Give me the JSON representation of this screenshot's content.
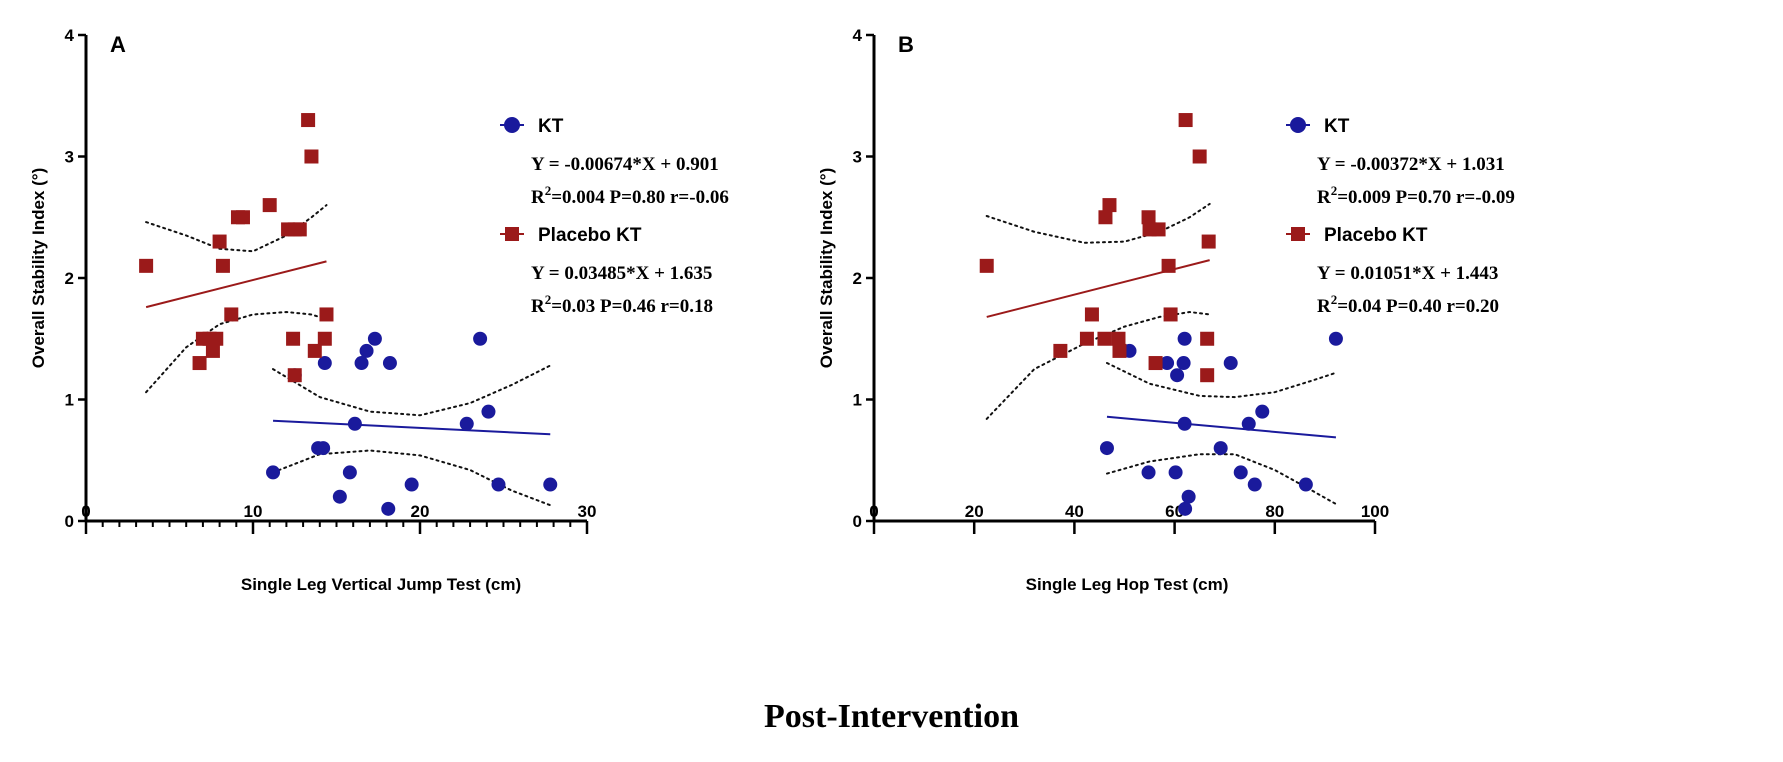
{
  "caption": "Post-Intervention",
  "colors": {
    "kt": "#1a1a9c",
    "placebo": "#9b1a1a",
    "axis": "#000000"
  },
  "chart_data": [
    {
      "type": "scatter",
      "panel_label": "A",
      "xlabel": "Single Leg Vertical Jump Test (cm)",
      "ylabel": "Overall Stability Index (°)",
      "xlim": [
        0,
        30
      ],
      "ylim": [
        0,
        4
      ],
      "xticks": [
        0,
        10,
        20,
        30
      ],
      "xtick_labels": [
        "0",
        "10",
        "20",
        "30"
      ],
      "yticks": [
        0,
        1,
        2,
        3,
        4
      ],
      "ytick_labels": [
        "0",
        "1",
        "2",
        "3",
        "4"
      ],
      "x_minor_step": 1,
      "legend": [
        {
          "name": "KT",
          "marker": "circle",
          "equation": "Y = -0.00674*X + 0.901",
          "stats": "=0.004 P=0.80 r=-0.06"
        },
        {
          "name": "Placebo KT",
          "marker": "square",
          "equation": "Y = 0.03485*X + 1.635",
          "stats": "=0.03 P=0.46 r=0.18"
        }
      ],
      "series": [
        {
          "name": "KT",
          "marker": "circle",
          "points": [
            [
              11.2,
              0.4
            ],
            [
              12.5,
              1.2
            ],
            [
              14.3,
              1.3
            ],
            [
              16.5,
              1.3
            ],
            [
              16.8,
              1.4
            ],
            [
              17.3,
              1.5
            ],
            [
              18.2,
              1.3
            ],
            [
              13.9,
              0.6
            ],
            [
              14.2,
              0.6
            ],
            [
              16.1,
              0.8
            ],
            [
              15.8,
              0.4
            ],
            [
              15.2,
              0.2
            ],
            [
              18.1,
              0.1
            ],
            [
              19.5,
              0.3
            ],
            [
              22.8,
              0.8
            ],
            [
              23.6,
              1.5
            ],
            [
              24.1,
              0.9
            ],
            [
              24.7,
              0.3
            ],
            [
              27.8,
              0.3
            ]
          ],
          "fit": {
            "x": [
              11.2,
              27.8
            ],
            "slope": -0.00674,
            "intercept": 0.901
          },
          "ci_upper": [
            [
              11.2,
              1.25
            ],
            [
              14,
              1.02
            ],
            [
              17,
              0.9
            ],
            [
              20,
              0.87
            ],
            [
              23,
              0.97
            ],
            [
              25.5,
              1.12
            ],
            [
              27.8,
              1.28
            ]
          ],
          "ci_lower": [
            [
              11.2,
              0.4
            ],
            [
              14,
              0.55
            ],
            [
              17,
              0.58
            ],
            [
              20,
              0.54
            ],
            [
              23,
              0.42
            ],
            [
              25.5,
              0.25
            ],
            [
              27.8,
              0.13
            ]
          ]
        },
        {
          "name": "Placebo KT",
          "marker": "square",
          "points": [
            [
              3.6,
              2.1
            ],
            [
              6.8,
              1.3
            ],
            [
              7.0,
              1.5
            ],
            [
              7.4,
              1.5
            ],
            [
              7.6,
              1.4
            ],
            [
              7.8,
              1.5
            ],
            [
              8.0,
              2.3
            ],
            [
              8.2,
              2.1
            ],
            [
              8.7,
              1.7
            ],
            [
              9.1,
              2.5
            ],
            [
              9.4,
              2.5
            ],
            [
              11.0,
              2.6
            ],
            [
              12.1,
              2.4
            ],
            [
              12.5,
              2.4
            ],
            [
              12.8,
              2.4
            ],
            [
              12.4,
              1.5
            ],
            [
              12.5,
              1.2
            ],
            [
              13.3,
              3.3
            ],
            [
              13.5,
              3.0
            ],
            [
              13.7,
              1.4
            ],
            [
              14.3,
              1.5
            ],
            [
              14.4,
              1.7
            ]
          ],
          "fit": {
            "x": [
              3.6,
              14.4
            ],
            "slope": 0.03485,
            "intercept": 1.635
          },
          "ci_upper": [
            [
              3.6,
              2.46
            ],
            [
              6,
              2.35
            ],
            [
              8,
              2.24
            ],
            [
              10,
              2.22
            ],
            [
              12,
              2.35
            ],
            [
              13.5,
              2.5
            ],
            [
              14.4,
              2.6
            ]
          ],
          "ci_lower": [
            [
              3.6,
              1.06
            ],
            [
              6,
              1.43
            ],
            [
              8,
              1.62
            ],
            [
              10,
              1.7
            ],
            [
              12,
              1.72
            ],
            [
              13.5,
              1.7
            ],
            [
              14.4,
              1.66
            ]
          ]
        }
      ]
    },
    {
      "type": "scatter",
      "panel_label": "B",
      "xlabel": "Single Leg Hop Test (cm)",
      "ylabel": "Overall Stability Index (°)",
      "xlim": [
        0,
        100
      ],
      "ylim": [
        0,
        4
      ],
      "xticks": [
        0,
        20,
        40,
        60,
        80,
        100
      ],
      "xtick_labels": [
        "0",
        "20",
        "40",
        "60",
        "80",
        "100"
      ],
      "yticks": [
        0,
        1,
        2,
        3,
        4
      ],
      "ytick_labels": [
        "0",
        "1",
        "2",
        "3",
        "4"
      ],
      "x_minor_step": 0,
      "legend": [
        {
          "name": "KT",
          "marker": "circle",
          "equation": "Y = -0.00372*X + 1.031",
          "stats": "=0.009 P=0.70 r=-0.09"
        },
        {
          "name": "Placebo KT",
          "marker": "square",
          "equation": "Y = 0.01051*X + 1.443",
          "stats": "=0.04 P=0.40 r=0.20"
        }
      ],
      "series": [
        {
          "name": "KT",
          "marker": "circle",
          "points": [
            [
              46.5,
              0.6
            ],
            [
              51,
              1.4
            ],
            [
              54.8,
              0.4
            ],
            [
              58.5,
              1.3
            ],
            [
              60.2,
              0.4
            ],
            [
              60.5,
              1.2
            ],
            [
              61.8,
              1.3
            ],
            [
              62,
              1.5
            ],
            [
              62,
              0.8
            ],
            [
              62.1,
              0.1
            ],
            [
              62.8,
              0.2
            ],
            [
              69.2,
              0.6
            ],
            [
              71.2,
              1.3
            ],
            [
              73.2,
              0.4
            ],
            [
              74.8,
              0.8
            ],
            [
              76,
              0.3
            ],
            [
              77.5,
              0.9
            ],
            [
              86.2,
              0.3
            ],
            [
              92.2,
              1.5
            ]
          ],
          "fit": {
            "x": [
              46.5,
              92.2
            ],
            "slope": -0.00372,
            "intercept": 1.031
          },
          "ci_upper": [
            [
              46.5,
              1.3
            ],
            [
              55,
              1.13
            ],
            [
              65,
              1.03
            ],
            [
              72,
              1.02
            ],
            [
              80,
              1.06
            ],
            [
              87,
              1.15
            ],
            [
              92.2,
              1.22
            ]
          ],
          "ci_lower": [
            [
              46.5,
              0.39
            ],
            [
              55,
              0.49
            ],
            [
              65,
              0.55
            ],
            [
              72,
              0.55
            ],
            [
              80,
              0.42
            ],
            [
              87,
              0.26
            ],
            [
              92.2,
              0.14
            ]
          ]
        },
        {
          "name": "Placebo KT",
          "marker": "square",
          "points": [
            [
              22.5,
              2.1
            ],
            [
              37.2,
              1.4
            ],
            [
              42.5,
              1.5
            ],
            [
              43.5,
              1.7
            ],
            [
              46,
              1.5
            ],
            [
              46.2,
              2.5
            ],
            [
              47,
              2.6
            ],
            [
              48.8,
              1.5
            ],
            [
              49,
              1.4
            ],
            [
              54.8,
              2.5
            ],
            [
              55,
              2.4
            ],
            [
              56.2,
              1.3
            ],
            [
              56.8,
              2.4
            ],
            [
              58.8,
              2.1
            ],
            [
              59.2,
              1.7
            ],
            [
              62.2,
              3.3
            ],
            [
              65,
              3.0
            ],
            [
              66.5,
              1.5
            ],
            [
              66.8,
              2.3
            ],
            [
              66.5,
              1.2
            ]
          ],
          "fit": {
            "x": [
              22.5,
              67
            ],
            "slope": 0.01051,
            "intercept": 1.443
          },
          "ci_upper": [
            [
              22.5,
              2.51
            ],
            [
              32,
              2.38
            ],
            [
              42,
              2.29
            ],
            [
              50,
              2.3
            ],
            [
              57,
              2.38
            ],
            [
              63,
              2.5
            ],
            [
              67,
              2.61
            ]
          ],
          "ci_lower": [
            [
              22.5,
              0.84
            ],
            [
              32,
              1.25
            ],
            [
              42,
              1.46
            ],
            [
              50,
              1.6
            ],
            [
              57,
              1.68
            ],
            [
              63,
              1.72
            ],
            [
              67,
              1.7
            ]
          ]
        }
      ]
    }
  ]
}
